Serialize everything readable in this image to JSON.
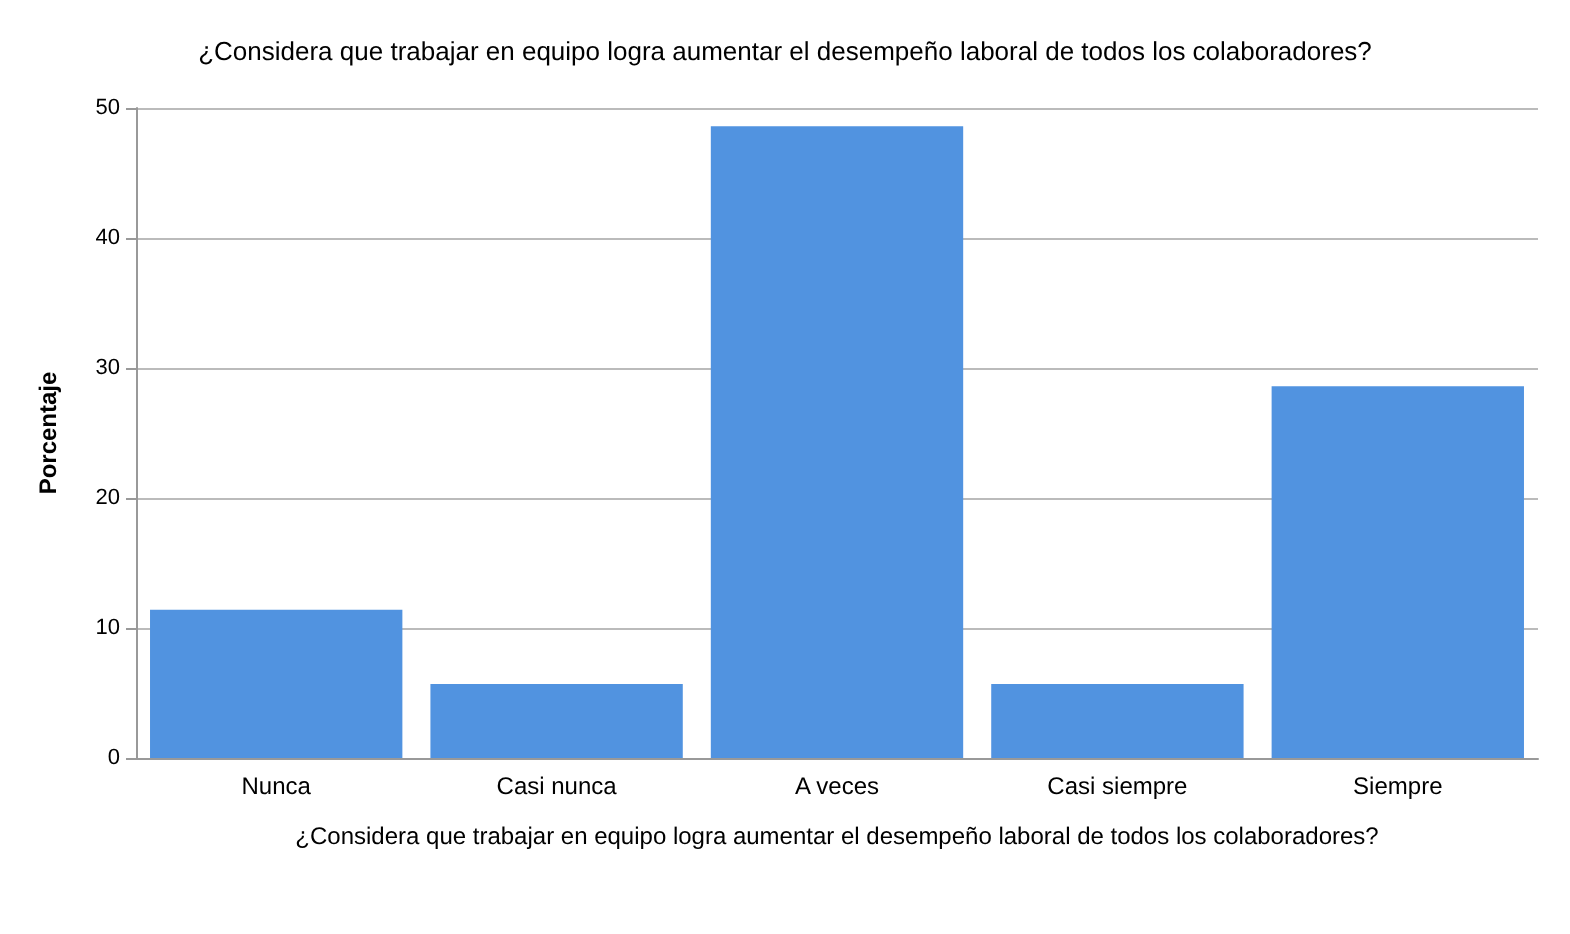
{
  "chart_data": {
    "type": "bar",
    "title": "¿Considera que trabajar en equipo logra aumentar el desempeño laboral de todos los colaboradores?",
    "xlabel": "¿Considera que trabajar en equipo logra aumentar el desempeño laboral de todos los colaboradores?",
    "ylabel": "Porcentaje",
    "categories": [
      "Nunca",
      "Casi nunca",
      "A veces",
      "Casi siempre",
      "Siempre"
    ],
    "values": [
      11.4,
      5.7,
      48.6,
      5.7,
      28.6
    ],
    "color": "#5193e0",
    "ylim": [
      0,
      50
    ],
    "yticks": [
      0,
      10,
      20,
      30,
      40,
      50
    ],
    "grid": "y"
  }
}
